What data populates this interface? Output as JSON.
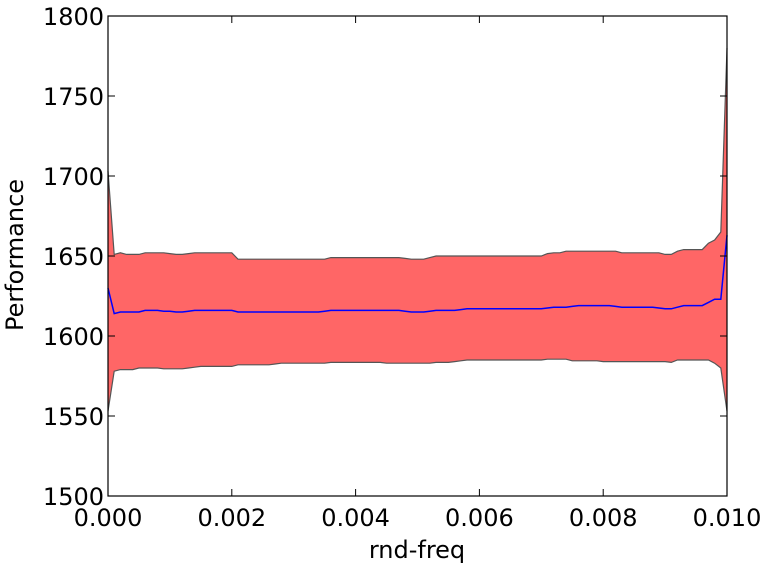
{
  "chart_data": {
    "type": "line",
    "title": "",
    "xlabel": "rnd-freq",
    "ylabel": "Performance",
    "xlim": [
      0.0,
      0.01
    ],
    "ylim": [
      1500,
      1800
    ],
    "grid": false,
    "x_ticks": [
      "0.000",
      "0.002",
      "0.004",
      "0.006",
      "0.008",
      "0.010"
    ],
    "y_ticks": [
      "1500",
      "1550",
      "1600",
      "1650",
      "1700",
      "1750",
      "1800"
    ],
    "band_color": "#ff6666",
    "band_edge_color": "#555555",
    "line_color": "#0000ff",
    "series": [
      {
        "x": [
          0.0,
          0.0001,
          0.0002,
          0.0003,
          0.0004,
          0.0005,
          0.0006,
          0.0007,
          0.0008,
          0.0009,
          0.001,
          0.0011,
          0.0012,
          0.0013,
          0.0014,
          0.0015,
          0.0016,
          0.0017,
          0.0018,
          0.0019,
          0.002,
          0.0021,
          0.0022,
          0.0023,
          0.0024,
          0.0025,
          0.0026,
          0.0027,
          0.0028,
          0.0029,
          0.003,
          0.0031,
          0.0032,
          0.0033,
          0.0034,
          0.0035,
          0.0036,
          0.0037,
          0.0038,
          0.0039,
          0.004,
          0.0041,
          0.0042,
          0.0043,
          0.0044,
          0.0045,
          0.0046,
          0.0047,
          0.0048,
          0.0049,
          0.005,
          0.0051,
          0.0052,
          0.0053,
          0.0054,
          0.0055,
          0.0056,
          0.0057,
          0.0058,
          0.0059,
          0.006,
          0.0061,
          0.0062,
          0.0063,
          0.0064,
          0.0065,
          0.0066,
          0.0067,
          0.0068,
          0.0069,
          0.007,
          0.0071,
          0.0072,
          0.0073,
          0.0074,
          0.0075,
          0.0076,
          0.0077,
          0.0078,
          0.0079,
          0.008,
          0.0081,
          0.0082,
          0.0083,
          0.0084,
          0.0085,
          0.0086,
          0.0087,
          0.0088,
          0.0089,
          0.009,
          0.0091,
          0.0092,
          0.0093,
          0.0094,
          0.0095,
          0.0096,
          0.0097,
          0.0098,
          0.0099,
          0.01
        ],
        "mean": [
          1630,
          1614,
          1615,
          1615,
          1615,
          1615,
          1616,
          1616,
          1616,
          1615.5,
          1615.5,
          1615,
          1615,
          1615.5,
          1616,
          1616,
          1616,
          1616,
          1616,
          1616,
          1616,
          1615,
          1615,
          1615,
          1615,
          1615,
          1615,
          1615,
          1615,
          1615,
          1615,
          1615,
          1615,
          1615,
          1615,
          1615.5,
          1616,
          1616,
          1616,
          1616,
          1616,
          1616,
          1616,
          1616,
          1616,
          1616,
          1616,
          1616,
          1615.5,
          1615,
          1615,
          1615,
          1615.5,
          1616,
          1616,
          1616,
          1616,
          1616.5,
          1617,
          1617,
          1617,
          1617,
          1617,
          1617,
          1617,
          1617,
          1617,
          1617,
          1617,
          1617,
          1617,
          1617.5,
          1618,
          1618,
          1618,
          1618.5,
          1619,
          1619,
          1619,
          1619,
          1619,
          1619,
          1618.5,
          1618,
          1618,
          1618,
          1618,
          1618,
          1618,
          1617.5,
          1617,
          1617,
          1618,
          1619,
          1619,
          1619,
          1619,
          1621,
          1623,
          1623,
          1663
        ],
        "upper": [
          1703,
          1651,
          1652,
          1651,
          1651,
          1651,
          1652,
          1652,
          1652,
          1652,
          1651.5,
          1651,
          1651,
          1651.5,
          1652,
          1652,
          1652,
          1652,
          1652,
          1652,
          1652,
          1648,
          1648,
          1648,
          1648,
          1648,
          1648,
          1648,
          1648,
          1648,
          1648,
          1648,
          1648,
          1648,
          1648,
          1648,
          1649,
          1649,
          1649,
          1649,
          1649,
          1649,
          1649,
          1649,
          1649,
          1649,
          1649,
          1649,
          1648.5,
          1648,
          1648,
          1648,
          1649,
          1650,
          1650,
          1650,
          1650,
          1650,
          1650,
          1650,
          1650,
          1650,
          1650,
          1650,
          1650,
          1650,
          1650,
          1650,
          1650,
          1650,
          1650,
          1651.5,
          1652,
          1652,
          1653,
          1653,
          1653,
          1653,
          1653,
          1653,
          1653,
          1653,
          1653,
          1652,
          1652,
          1652,
          1652,
          1652,
          1652,
          1652,
          1651,
          1651,
          1653,
          1654,
          1654,
          1654,
          1654,
          1658,
          1660,
          1665,
          1780
        ],
        "lower": [
          1553,
          1578,
          1579,
          1579,
          1579,
          1580,
          1580,
          1580,
          1580,
          1579.5,
          1579.5,
          1579.5,
          1579.5,
          1580,
          1580.5,
          1581,
          1581,
          1581,
          1581,
          1581,
          1581,
          1582,
          1582,
          1582,
          1582,
          1582,
          1582,
          1582.5,
          1583,
          1583,
          1583,
          1583,
          1583,
          1583,
          1583,
          1583,
          1583.5,
          1583.5,
          1583.5,
          1583.5,
          1583.5,
          1583.5,
          1583.5,
          1583.5,
          1583.5,
          1583,
          1583,
          1583,
          1583,
          1583,
          1583,
          1583,
          1583,
          1583.5,
          1583.5,
          1583.5,
          1584,
          1584.5,
          1585,
          1585,
          1585,
          1585,
          1585,
          1585,
          1585,
          1585,
          1585,
          1585,
          1585,
          1585,
          1585,
          1585.5,
          1585.5,
          1585.5,
          1585.5,
          1584.5,
          1584.5,
          1584.5,
          1584.5,
          1584.5,
          1584,
          1584,
          1584,
          1584,
          1584,
          1584,
          1584,
          1584,
          1584,
          1584,
          1584,
          1583.5,
          1585,
          1585,
          1585,
          1585,
          1585,
          1585,
          1583,
          1580,
          1553
        ]
      }
    ]
  }
}
